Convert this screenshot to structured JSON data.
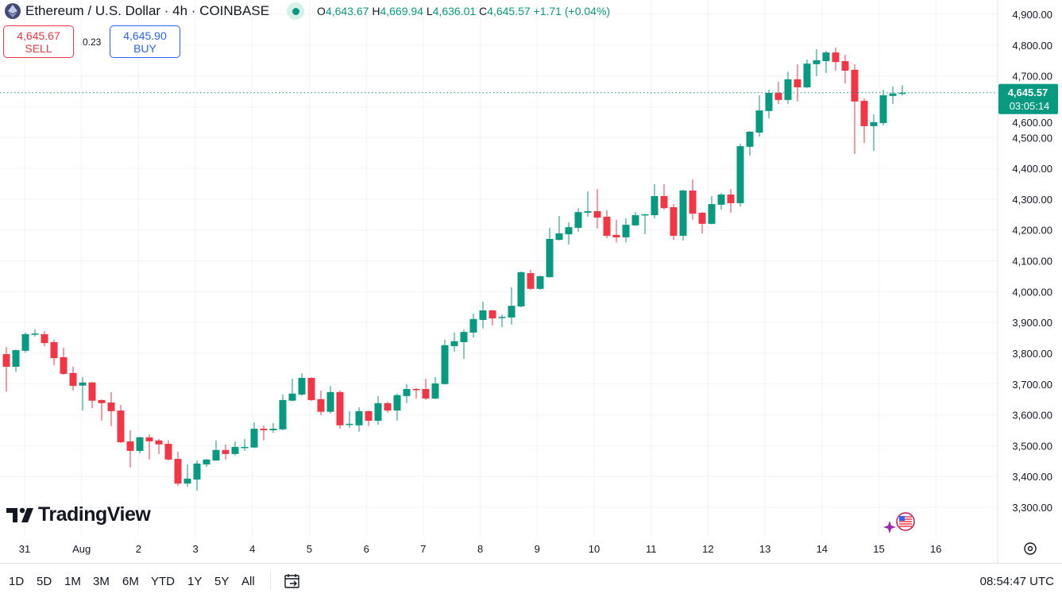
{
  "header": {
    "symbol_title": "Ethereum / U.S. Dollar · 4h · COINBASE",
    "market_status_icon": "market-open-dot-icon",
    "ohlc": {
      "o_label": "O",
      "o": "4,643.67",
      "h_label": "H",
      "h": "4,669.94",
      "l_label": "L",
      "l": "4,636.01",
      "c_label": "C",
      "c": "4,645.57",
      "change": "+1.71 (+0.04%)"
    }
  },
  "trade": {
    "sell_price": "4,645.67",
    "sell_label": "SELL",
    "spread": "0.23",
    "buy_price": "4,645.90",
    "buy_label": "BUY"
  },
  "price_label": {
    "price": "4,645.57",
    "countdown": "03:05:14"
  },
  "logo_text": "TradingView",
  "bottom": {
    "ranges": [
      "1D",
      "5D",
      "1M",
      "3M",
      "6M",
      "YTD",
      "1Y",
      "5Y",
      "All"
    ],
    "clock": "08:54:47 UTC"
  },
  "colors": {
    "up": "#089981",
    "down": "#F23645",
    "grid": "#f0f3fa",
    "accent": "#2962FF"
  },
  "chart_data": {
    "type": "candlestick",
    "title": "Ethereum / U.S. Dollar · 4h · COINBASE",
    "interval": "4h",
    "ylim": [
      3300,
      4900
    ],
    "y_ticks": [
      "4,900.00",
      "4,800.00",
      "4,700.00",
      "4,600.00",
      "4,500.00",
      "4,400.00",
      "4,300.00",
      "4,200.00",
      "4,100.00",
      "4,000.00",
      "3,900.00",
      "3,800.00",
      "3,700.00",
      "3,600.00",
      "3,500.00",
      "3,400.00",
      "3,300.00"
    ],
    "y_tick_values": [
      4900,
      4800,
      4700,
      4600,
      4500,
      4400,
      4300,
      4200,
      4100,
      4000,
      3900,
      3800,
      3700,
      3600,
      3500,
      3400,
      3300
    ],
    "x_ticks": [
      "31",
      "Aug",
      "2",
      "3",
      "4",
      "5",
      "6",
      "7",
      "8",
      "9",
      "10",
      "11",
      "12",
      "13",
      "14",
      "15",
      "16"
    ],
    "grid": true,
    "last_price": 4645.57,
    "candles_ohlc": [
      [
        3797,
        3820,
        3675,
        3756
      ],
      [
        3756,
        3812,
        3740,
        3810
      ],
      [
        3808,
        3867,
        3802,
        3862
      ],
      [
        3860,
        3877,
        3854,
        3864
      ],
      [
        3862,
        3872,
        3823,
        3833
      ],
      [
        3836,
        3844,
        3761,
        3784
      ],
      [
        3787,
        3818,
        3730,
        3733
      ],
      [
        3736,
        3756,
        3679,
        3694
      ],
      [
        3695,
        3723,
        3614,
        3705
      ],
      [
        3705,
        3707,
        3622,
        3646
      ],
      [
        3648,
        3650,
        3581,
        3638
      ],
      [
        3640,
        3674,
        3563,
        3612
      ],
      [
        3614,
        3632,
        3509,
        3511
      ],
      [
        3514,
        3550,
        3429,
        3483
      ],
      [
        3483,
        3529,
        3475,
        3527
      ],
      [
        3527,
        3537,
        3455,
        3514
      ],
      [
        3517,
        3522,
        3473,
        3504
      ],
      [
        3506,
        3517,
        3452,
        3455
      ],
      [
        3457,
        3480,
        3370,
        3377
      ],
      [
        3377,
        3439,
        3367,
        3393
      ],
      [
        3390,
        3452,
        3354,
        3442
      ],
      [
        3439,
        3457,
        3431,
        3455
      ],
      [
        3452,
        3517,
        3450,
        3486
      ],
      [
        3486,
        3504,
        3455,
        3473
      ],
      [
        3473,
        3514,
        3468,
        3496
      ],
      [
        3494,
        3522,
        3483,
        3496
      ],
      [
        3494,
        3576,
        3492,
        3555
      ],
      [
        3555,
        3566,
        3517,
        3550
      ],
      [
        3550,
        3573,
        3542,
        3555
      ],
      [
        3553,
        3666,
        3550,
        3648
      ],
      [
        3646,
        3717,
        3644,
        3669
      ],
      [
        3666,
        3735,
        3661,
        3720
      ],
      [
        3720,
        3722,
        3645,
        3648
      ],
      [
        3651,
        3679,
        3599,
        3610
      ],
      [
        3610,
        3694,
        3604,
        3674
      ],
      [
        3674,
        3679,
        3555,
        3566
      ],
      [
        3568,
        3612,
        3558,
        3571
      ],
      [
        3566,
        3625,
        3545,
        3612
      ],
      [
        3612,
        3614,
        3563,
        3581
      ],
      [
        3581,
        3661,
        3568,
        3638
      ],
      [
        3638,
        3643,
        3607,
        3614
      ],
      [
        3614,
        3669,
        3581,
        3664
      ],
      [
        3661,
        3700,
        3638,
        3684
      ],
      [
        3684,
        3687,
        3653,
        3682
      ],
      [
        3684,
        3717,
        3648,
        3653
      ],
      [
        3653,
        3723,
        3651,
        3702
      ],
      [
        3700,
        3844,
        3698,
        3826
      ],
      [
        3823,
        3867,
        3805,
        3839
      ],
      [
        3836,
        3877,
        3782,
        3869
      ],
      [
        3867,
        3929,
        3851,
        3911
      ],
      [
        3908,
        3967,
        3880,
        3939
      ],
      [
        3939,
        3941,
        3890,
        3913
      ],
      [
        3916,
        3926,
        3885,
        3918
      ],
      [
        3916,
        4014,
        3893,
        3954
      ],
      [
        3952,
        4065,
        3949,
        4063
      ],
      [
        4060,
        4071,
        4006,
        4009
      ],
      [
        4009,
        4052,
        4006,
        4050
      ],
      [
        4047,
        4207,
        4045,
        4171
      ],
      [
        4168,
        4246,
        4166,
        4189
      ],
      [
        4186,
        4225,
        4153,
        4209
      ],
      [
        4207,
        4271,
        4194,
        4258
      ],
      [
        4256,
        4325,
        4243,
        4261
      ],
      [
        4261,
        4333,
        4204,
        4240
      ],
      [
        4243,
        4264,
        4173,
        4181
      ],
      [
        4184,
        4233,
        4160,
        4176
      ],
      [
        4176,
        4238,
        4160,
        4217
      ],
      [
        4215,
        4258,
        4213,
        4248
      ],
      [
        4249,
        4252,
        4186,
        4251
      ],
      [
        4248,
        4349,
        4238,
        4310
      ],
      [
        4310,
        4349,
        4266,
        4271
      ],
      [
        4274,
        4284,
        4168,
        4181
      ],
      [
        4181,
        4331,
        4166,
        4328
      ],
      [
        4328,
        4364,
        4233,
        4253
      ],
      [
        4256,
        4258,
        4189,
        4220
      ],
      [
        4220,
        4310,
        4218,
        4284
      ],
      [
        4282,
        4320,
        4266,
        4315
      ],
      [
        4315,
        4333,
        4256,
        4287
      ],
      [
        4287,
        4480,
        4276,
        4472
      ],
      [
        4470,
        4521,
        4441,
        4519
      ],
      [
        4516,
        4637,
        4503,
        4588
      ],
      [
        4586,
        4655,
        4562,
        4645
      ],
      [
        4645,
        4681,
        4609,
        4622
      ],
      [
        4622,
        4714,
        4609,
        4689
      ],
      [
        4689,
        4738,
        4617,
        4663
      ],
      [
        4663,
        4753,
        4660,
        4740
      ],
      [
        4738,
        4787,
        4699,
        4751
      ],
      [
        4748,
        4781,
        4709,
        4776
      ],
      [
        4776,
        4792,
        4717,
        4745
      ],
      [
        4748,
        4769,
        4676,
        4717
      ],
      [
        4720,
        4738,
        4447,
        4617
      ],
      [
        4619,
        4627,
        4483,
        4537
      ],
      [
        4537,
        4575,
        4457,
        4550
      ],
      [
        4547,
        4655,
        4539,
        4637
      ],
      [
        4635,
        4666,
        4609,
        4643
      ],
      [
        4643.67,
        4669.94,
        4636.01,
        4645.57
      ]
    ]
  }
}
